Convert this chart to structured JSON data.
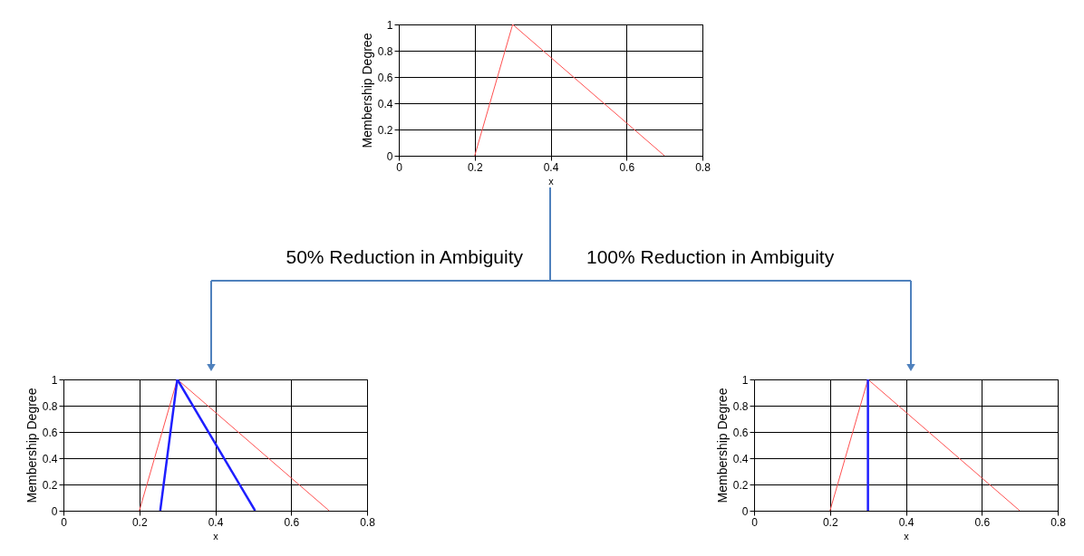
{
  "chart_data": [
    {
      "type": "line",
      "xlabel": "x",
      "ylabel": "Membership Degree",
      "xlim": [
        0,
        0.8
      ],
      "xticks": [
        0,
        0.2,
        0.4,
        0.6,
        0.8
      ],
      "ylim": [
        0,
        1
      ],
      "yticks": [
        0,
        0.2,
        0.4,
        0.6,
        0.8,
        1
      ],
      "grid": true,
      "series": [
        {
          "color": "#ff5050",
          "x": [
            0.2,
            0.3,
            0.7
          ],
          "values": [
            0,
            1,
            0
          ]
        }
      ]
    },
    {
      "type": "line",
      "xlabel": "x",
      "ylabel": "Membership Degree",
      "xlim": [
        0,
        0.8
      ],
      "xticks": [
        0,
        0.2,
        0.4,
        0.6,
        0.8
      ],
      "ylim": [
        0,
        1
      ],
      "yticks": [
        0,
        0.2,
        0.4,
        0.6,
        0.8,
        1
      ],
      "grid": true,
      "annotations": [
        "50% Reduction in Ambiguity"
      ],
      "series": [
        {
          "color": "#ff5050",
          "x": [
            0.2,
            0.3,
            0.7
          ],
          "values": [
            0,
            1,
            0
          ]
        },
        {
          "color": "#1f1fff",
          "x": [
            0.255,
            0.3,
            0.505
          ],
          "values": [
            0,
            1,
            0
          ]
        }
      ]
    },
    {
      "type": "line",
      "xlabel": "x",
      "ylabel": "Membership Degree",
      "xlim": [
        0,
        0.8
      ],
      "xticks": [
        0,
        0.2,
        0.4,
        0.6,
        0.8
      ],
      "ylim": [
        0,
        1
      ],
      "yticks": [
        0,
        0.2,
        0.4,
        0.6,
        0.8,
        1
      ],
      "grid": true,
      "annotations": [
        "100% Reduction in Ambiguity"
      ],
      "series": [
        {
          "color": "#ff5050",
          "x": [
            0.2,
            0.3,
            0.7
          ],
          "values": [
            0,
            1,
            0
          ]
        },
        {
          "color": "#1f1fff",
          "x": [
            0.3,
            0.3
          ],
          "values": [
            0,
            1
          ]
        }
      ]
    }
  ]
}
